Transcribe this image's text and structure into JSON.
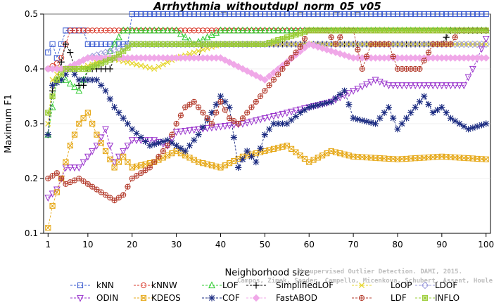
{
  "chart_data": {
    "type": "line",
    "title": "Arrhythmia_withoutdupl_norm_05_v05",
    "xlabel": "Neighborhood size",
    "ylabel": "Maximum F1",
    "xlim": [
      0,
      101
    ],
    "ylim": [
      0.1,
      0.5
    ],
    "xticks": [
      1,
      10,
      20,
      30,
      40,
      50,
      60,
      70,
      80,
      90,
      100
    ],
    "yticks": [
      0.1,
      0.2,
      0.3,
      0.4,
      0.5
    ],
    "watermark_lines": [
      "Unsupervised Outlier Detection. DAMI, 2015.",
      "Campos, Zimek, Sander, Campello, Micenkova, Schubert, Assent, Houle"
    ],
    "legend_position": "bottom",
    "series": [
      {
        "name": "kNN",
        "color": "#3a5bd0",
        "marker": "square",
        "keypoints": [
          [
            1,
            0.43
          ],
          [
            2,
            0.445
          ],
          [
            3,
            0.42
          ],
          [
            4,
            0.445
          ],
          [
            5,
            0.47
          ],
          [
            9,
            0.47
          ],
          [
            10,
            0.445
          ],
          [
            19,
            0.445
          ],
          [
            20,
            0.5
          ],
          [
            100,
            0.5
          ]
        ]
      },
      {
        "name": "kNNW",
        "color": "#d93a2b",
        "marker": "circle",
        "keypoints": [
          [
            1,
            0.4
          ],
          [
            3,
            0.41
          ],
          [
            4,
            0.42
          ],
          [
            5,
            0.445
          ],
          [
            6,
            0.47
          ],
          [
            100,
            0.47
          ]
        ]
      },
      {
        "name": "LOF",
        "color": "#33cc33",
        "marker": "triangle-up",
        "keypoints": [
          [
            1,
            0.28
          ],
          [
            2,
            0.33
          ],
          [
            3,
            0.38
          ],
          [
            5,
            0.38
          ],
          [
            8,
            0.36
          ],
          [
            10,
            0.4
          ],
          [
            14,
            0.42
          ],
          [
            16,
            0.445
          ],
          [
            18,
            0.47
          ],
          [
            30,
            0.47
          ],
          [
            34,
            0.445
          ],
          [
            40,
            0.47
          ],
          [
            60,
            0.47
          ],
          [
            70,
            0.47
          ],
          [
            95,
            0.47
          ],
          [
            100,
            0.47
          ]
        ]
      },
      {
        "name": "SimplifiedLOF",
        "color": "#000000",
        "marker": "plus",
        "keypoints": [
          [
            1,
            0.28
          ],
          [
            2,
            0.36
          ],
          [
            3,
            0.38
          ],
          [
            5,
            0.445
          ],
          [
            6,
            0.43
          ],
          [
            8,
            0.37
          ],
          [
            9,
            0.37
          ],
          [
            10,
            0.4
          ],
          [
            15,
            0.4
          ],
          [
            16,
            0.42
          ],
          [
            35,
            0.42
          ],
          [
            36,
            0.445
          ],
          [
            50,
            0.445
          ],
          [
            54,
            0.445
          ],
          [
            70,
            0.445
          ],
          [
            75,
            0.445
          ],
          [
            90,
            0.445
          ],
          [
            92,
            0.47
          ],
          [
            100,
            0.47
          ]
        ]
      },
      {
        "name": "LoOP",
        "color": "#e6d62e",
        "marker": "x",
        "keypoints": [
          [
            1,
            0.3
          ],
          [
            2,
            0.38
          ],
          [
            4,
            0.4
          ],
          [
            8,
            0.4
          ],
          [
            15,
            0.42
          ],
          [
            25,
            0.4
          ],
          [
            30,
            0.42
          ],
          [
            40,
            0.445
          ],
          [
            70,
            0.445
          ],
          [
            100,
            0.445
          ]
        ]
      },
      {
        "name": "LDOF",
        "color": "#9b9bdc",
        "marker": "diamond",
        "keypoints": [
          [
            1,
            0.4
          ],
          [
            5,
            0.4
          ],
          [
            10,
            0.42
          ],
          [
            20,
            0.445
          ],
          [
            40,
            0.445
          ],
          [
            60,
            0.445
          ],
          [
            80,
            0.445
          ],
          [
            100,
            0.445
          ]
        ]
      },
      {
        "name": "ODIN",
        "color": "#9933cc",
        "marker": "triangle-down",
        "keypoints": [
          [
            1,
            0.165
          ],
          [
            3,
            0.18
          ],
          [
            5,
            0.22
          ],
          [
            8,
            0.22
          ],
          [
            12,
            0.26
          ],
          [
            14,
            0.29
          ],
          [
            16,
            0.23
          ],
          [
            20,
            0.27
          ],
          [
            25,
            0.27
          ],
          [
            28,
            0.26
          ],
          [
            30,
            0.285
          ],
          [
            35,
            0.29
          ],
          [
            45,
            0.3
          ],
          [
            55,
            0.32
          ],
          [
            60,
            0.33
          ],
          [
            65,
            0.34
          ],
          [
            70,
            0.36
          ],
          [
            75,
            0.38
          ],
          [
            78,
            0.37
          ],
          [
            95,
            0.37
          ],
          [
            97,
            0.4
          ],
          [
            100,
            0.455
          ]
        ]
      },
      {
        "name": "KDEOS",
        "color": "#e6a817",
        "marker": "square-x",
        "keypoints": [
          [
            1,
            0.11
          ],
          [
            2,
            0.15
          ],
          [
            4,
            0.2
          ],
          [
            6,
            0.26
          ],
          [
            8,
            0.3
          ],
          [
            10,
            0.32
          ],
          [
            12,
            0.28
          ],
          [
            14,
            0.25
          ],
          [
            16,
            0.22
          ],
          [
            18,
            0.24
          ],
          [
            20,
            0.22
          ],
          [
            25,
            0.23
          ],
          [
            30,
            0.25
          ],
          [
            35,
            0.23
          ],
          [
            40,
            0.22
          ],
          [
            45,
            0.24
          ],
          [
            50,
            0.25
          ],
          [
            55,
            0.26
          ],
          [
            60,
            0.23
          ],
          [
            65,
            0.25
          ],
          [
            70,
            0.24
          ],
          [
            80,
            0.235
          ],
          [
            90,
            0.24
          ],
          [
            100,
            0.235
          ]
        ]
      },
      {
        "name": "COF",
        "color": "#1a2a80",
        "marker": "asterisk",
        "keypoints": [
          [
            1,
            0.28
          ],
          [
            2,
            0.37
          ],
          [
            4,
            0.38
          ],
          [
            6,
            0.4
          ],
          [
            8,
            0.38
          ],
          [
            12,
            0.38
          ],
          [
            14,
            0.36
          ],
          [
            16,
            0.33
          ],
          [
            20,
            0.29
          ],
          [
            24,
            0.26
          ],
          [
            28,
            0.27
          ],
          [
            30,
            0.26
          ],
          [
            32,
            0.25
          ],
          [
            35,
            0.28
          ],
          [
            38,
            0.32
          ],
          [
            40,
            0.35
          ],
          [
            42,
            0.33
          ],
          [
            44,
            0.22
          ],
          [
            46,
            0.25
          ],
          [
            48,
            0.23
          ],
          [
            50,
            0.28
          ],
          [
            52,
            0.3
          ],
          [
            55,
            0.3
          ],
          [
            58,
            0.32
          ],
          [
            60,
            0.33
          ],
          [
            65,
            0.34
          ],
          [
            68,
            0.36
          ],
          [
            70,
            0.31
          ],
          [
            75,
            0.3
          ],
          [
            78,
            0.33
          ],
          [
            80,
            0.29
          ],
          [
            84,
            0.33
          ],
          [
            86,
            0.35
          ],
          [
            88,
            0.32
          ],
          [
            90,
            0.33
          ],
          [
            92,
            0.31
          ],
          [
            94,
            0.3
          ],
          [
            96,
            0.29
          ],
          [
            100,
            0.3
          ]
        ]
      },
      {
        "name": "FastABOD",
        "color": "#f0a8e8",
        "marker": "diamond-filled",
        "keypoints": [
          [
            1,
            0.4
          ],
          [
            5,
            0.4
          ],
          [
            10,
            0.42
          ],
          [
            20,
            0.42
          ],
          [
            40,
            0.42
          ],
          [
            50,
            0.38
          ],
          [
            60,
            0.445
          ],
          [
            70,
            0.42
          ],
          [
            80,
            0.42
          ],
          [
            90,
            0.42
          ],
          [
            100,
            0.42
          ]
        ]
      },
      {
        "name": "LDF",
        "color": "#b33a2b",
        "marker": "circle-plus",
        "keypoints": [
          [
            1,
            0.2
          ],
          [
            3,
            0.21
          ],
          [
            5,
            0.19
          ],
          [
            8,
            0.2
          ],
          [
            12,
            0.18
          ],
          [
            14,
            0.17
          ],
          [
            16,
            0.16
          ],
          [
            18,
            0.17
          ],
          [
            20,
            0.2
          ],
          [
            24,
            0.22
          ],
          [
            28,
            0.26
          ],
          [
            30,
            0.3
          ],
          [
            32,
            0.33
          ],
          [
            34,
            0.34
          ],
          [
            36,
            0.32
          ],
          [
            38,
            0.3
          ],
          [
            40,
            0.34
          ],
          [
            42,
            0.31
          ],
          [
            44,
            0.3
          ],
          [
            46,
            0.32
          ],
          [
            48,
            0.34
          ],
          [
            50,
            0.36
          ],
          [
            52,
            0.38
          ],
          [
            54,
            0.4
          ],
          [
            56,
            0.42
          ],
          [
            58,
            0.44
          ],
          [
            60,
            0.47
          ],
          [
            64,
            0.47
          ],
          [
            66,
            0.445
          ],
          [
            68,
            0.47
          ],
          [
            70,
            0.47
          ],
          [
            72,
            0.4
          ],
          [
            74,
            0.445
          ],
          [
            78,
            0.445
          ],
          [
            80,
            0.4
          ],
          [
            85,
            0.4
          ],
          [
            88,
            0.445
          ],
          [
            92,
            0.445
          ],
          [
            94,
            0.47
          ],
          [
            96,
            0.47
          ],
          [
            100,
            0.47
          ]
        ]
      },
      {
        "name": "INFLO",
        "color": "#99cc33",
        "marker": "square-star",
        "keypoints": [
          [
            1,
            0.32
          ],
          [
            3,
            0.38
          ],
          [
            5,
            0.4
          ],
          [
            8,
            0.4
          ],
          [
            10,
            0.4
          ],
          [
            16,
            0.42
          ],
          [
            20,
            0.445
          ],
          [
            40,
            0.445
          ],
          [
            50,
            0.445
          ],
          [
            60,
            0.47
          ],
          [
            80,
            0.47
          ],
          [
            100,
            0.47
          ]
        ]
      }
    ]
  }
}
